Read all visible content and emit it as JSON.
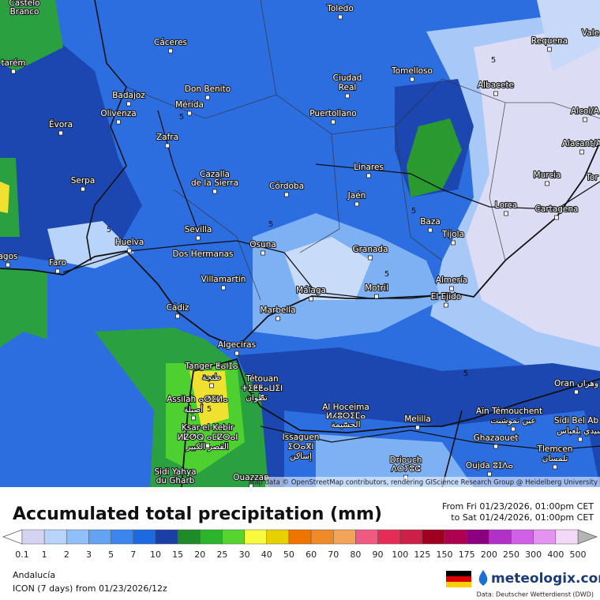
{
  "map": {
    "cities": [
      "Castelo",
      "Branco",
      "Toledo",
      "Cáceres",
      "Requena",
      "Vale",
      "tarém",
      "Ciudad",
      "Real",
      "Tomelloso",
      "Albacete",
      "Don Benito",
      "Badajoz",
      "Mérida",
      "Alcoi/A",
      "Évora",
      "Olivenza",
      "Puertollano",
      "Zafra",
      "Alacant/A",
      "Linares",
      "Cazalla",
      "de la Sierra",
      "Serpa",
      "Murcia",
      "Tor",
      "Córdoba",
      "Jaén",
      "Lorca",
      "Cartagena",
      "Baza",
      "Tíjola",
      "Sevilla",
      "Huelva",
      "Osuna",
      "Dos Hermanas",
      "agos",
      "Faro",
      "Granada",
      "Almería",
      "Villamartín",
      "Málaga",
      "Motril",
      "El Ejido",
      "Marbella",
      "Cádiz",
      "Algeciras",
      "Tanger ⵟⴰⵏⵊⴰ",
      "طنجة",
      "Tétouan",
      "ⵜⵉⵟⵟⴰⵡⵉⵏ",
      "تطوان",
      "Oran وهران",
      "Assilah ⴰⵚⵉⵍⴰ",
      "أصيلة",
      "Al Hoceima",
      "ⵍⵃⵓⵙⵉⵎⴰ",
      "الحسيمة",
      "Melilla",
      "Aïn Témouchent",
      "عين تموشنت",
      "Sidi Bel Ab",
      "سيدي بلعباس",
      "Ksar-el-Kebir",
      "ⵍⵇⵚⵕ ⴰⵎⵇⵔⴰⵏ",
      "القصر الكبير",
      "Issaguen",
      "ⵉⵙⴰⴳⵏ",
      "إساكن",
      "Ghazaouet",
      "Tlemcen",
      "تلمسان",
      "Driouch",
      "ⴷⵔⵢⵓⵛ",
      "Oujda ⵓⵊⴷⴰ",
      "Sidi Yahya",
      "du Gharb",
      "Ouazzan"
    ],
    "contour_labels": [
      5,
      5,
      5,
      5,
      5,
      5,
      5,
      5
    ],
    "attribution": "Map data © OpenStreetMap contributors, rendering GIScience Research Group @ Heidelberg University"
  },
  "title": "Accumulated total precipitation (mm)",
  "period_from": "From Fri 01/23/2026, 01:00pm CET",
  "period_to": "to Sat 01/24/2026, 01:00pm CET",
  "legend": {
    "labels": [
      0.1,
      1,
      2,
      3,
      5,
      7,
      10,
      15,
      20,
      25,
      30,
      40,
      50,
      60,
      70,
      80,
      90,
      100,
      125,
      150,
      175,
      200,
      250,
      300,
      400,
      500
    ],
    "colors": [
      "#d4d4f2",
      "#b8d4fa",
      "#90c0fa",
      "#64a2f2",
      "#3a86ee",
      "#1c6ae2",
      "#1a40a8",
      "#1e8a28",
      "#2cb42c",
      "#58d430",
      "#fafa3c",
      "#e8d000",
      "#f07400",
      "#f08a28",
      "#f2a458",
      "#f05a80",
      "#e62c56",
      "#cc2048",
      "#a00020",
      "#b00050",
      "#8a0080",
      "#b030c8",
      "#d060e6",
      "#e494f0",
      "#f4d8fa"
    ]
  },
  "footer": {
    "region": "Andalucía",
    "model": "ICON (7 days)  from  01/23/2026/12z",
    "brand": "meteologix.com",
    "source": "Data: Deutscher Wetterdienst (DWD)"
  }
}
